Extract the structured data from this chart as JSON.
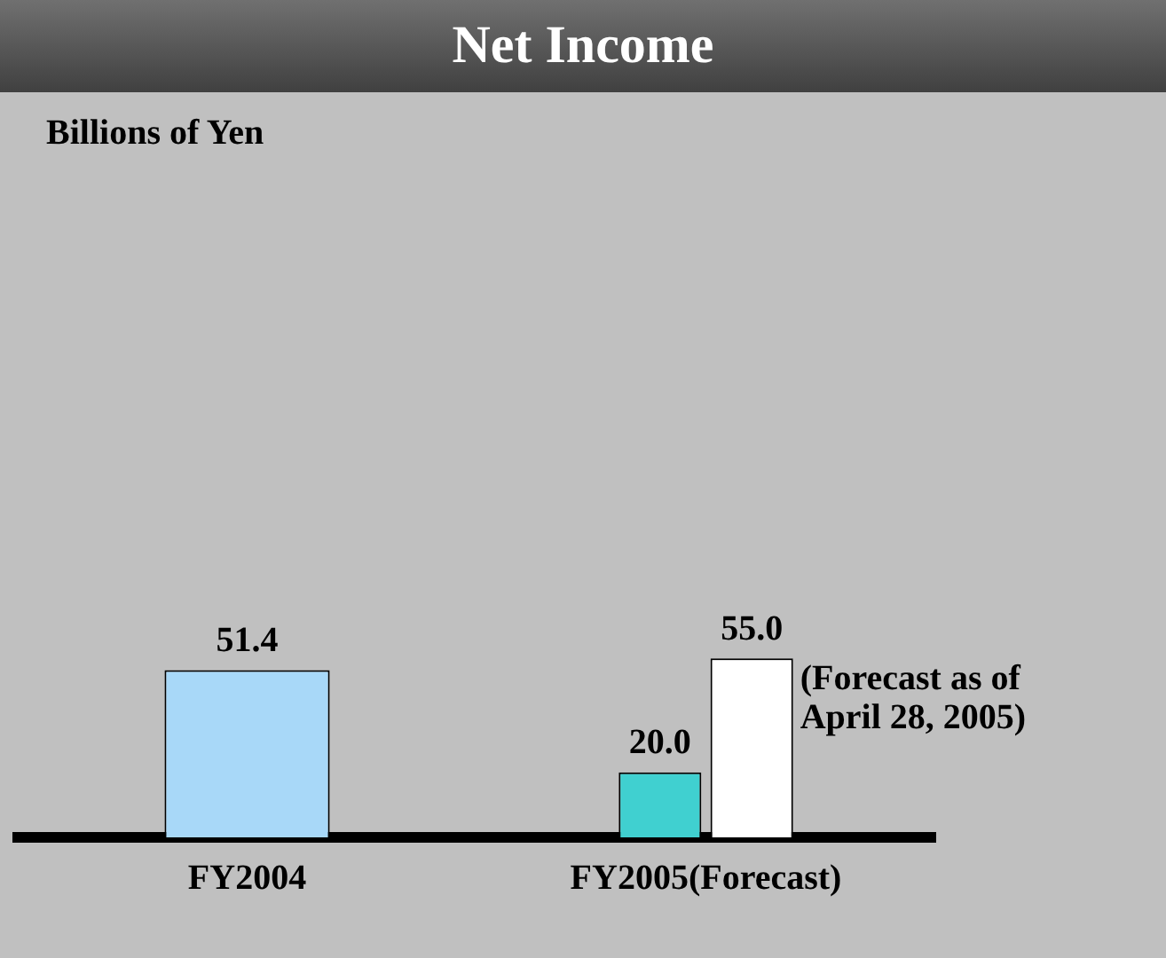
{
  "chart_data": {
    "type": "bar",
    "title": "Net Income",
    "categories": [
      "FY2004",
      "FY2005(Forecast)"
    ],
    "series": [
      {
        "colors": [
          "#a8d8f8",
          "#40d0d0"
        ],
        "values": [
          51.4,
          20.0
        ],
        "value_labels": [
          "51.4",
          "20.0"
        ]
      },
      {
        "color": "#ffffff",
        "values": [
          null,
          55.0
        ],
        "value_labels": [
          null,
          "55.0"
        ]
      }
    ],
    "legend": false,
    "grid": false,
    "annotations": [
      "Billions of Yen",
      "(Forecast as of April 28, 2005)"
    ]
  }
}
